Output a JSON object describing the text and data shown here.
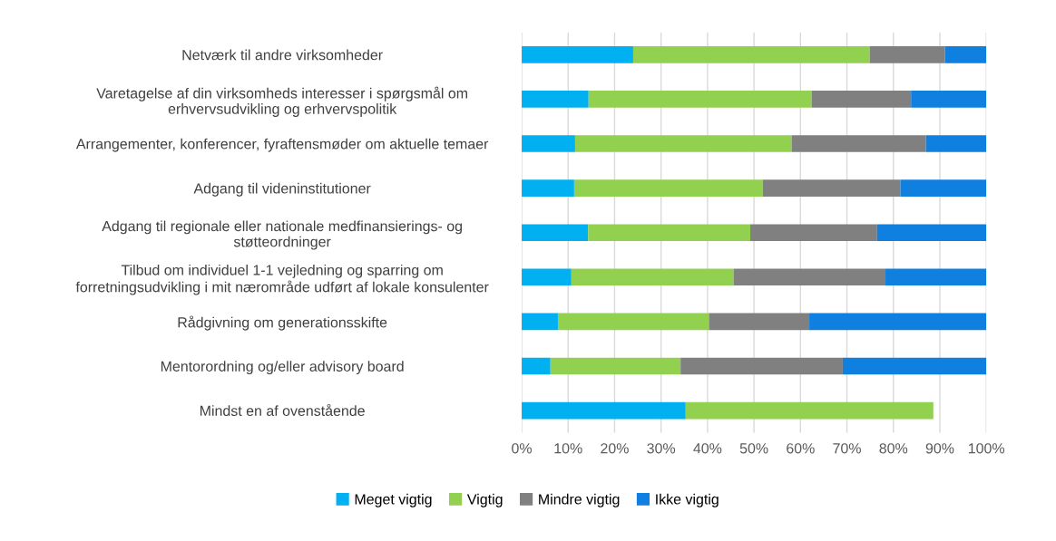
{
  "chart_data": {
    "type": "bar",
    "orientation": "horizontal",
    "stacked": true,
    "categories": [
      "Netværk til andre virksomheder",
      "Varetagelse af din virksomheds interesser i spørgsmål om\nerhvervsudvikling og erhvervspolitik",
      "Arrangementer, konferencer, fyraftensmøder om aktuelle temaer",
      "Adgang til videninstitutioner",
      "Adgang til regionale eller nationale medfinansierings- og\nstøtteordninger",
      "Tilbud om individuel 1-1 vejledning og sparring om\nforretningsudvikling i mit nærområde udført af lokale konsulenter",
      "Rådgivning om generationsskifte",
      "Mentorordning og/eller advisory board",
      "Mindst en af ovenstående"
    ],
    "series": [
      {
        "name": "Meget vigtig",
        "color": "#00b0f0",
        "values": [
          24.0,
          14.4,
          11.5,
          11.3,
          14.3,
          10.7,
          7.8,
          6.2,
          35.3
        ]
      },
      {
        "name": "Vigtig",
        "color": "#92d050",
        "values": [
          50.9,
          48.0,
          46.6,
          40.6,
          34.9,
          34.9,
          32.5,
          28.0,
          53.3
        ]
      },
      {
        "name": "Mindre vigtig",
        "color": "#808080",
        "values": [
          16.2,
          21.4,
          28.9,
          29.6,
          27.3,
          32.7,
          21.6,
          34.9,
          0
        ]
      },
      {
        "name": "Ikke vigtig",
        "color": "#0f7fe0",
        "values": [
          8.9,
          16.2,
          13.0,
          18.5,
          23.5,
          21.7,
          38.1,
          30.9,
          0
        ]
      }
    ],
    "xlim": [
      0,
      100
    ],
    "xticks": [
      {
        "value": 0,
        "label": "0%"
      },
      {
        "value": 10,
        "label": "10%"
      },
      {
        "value": 20,
        "label": "20%"
      },
      {
        "value": 30,
        "label": "30%"
      },
      {
        "value": 40,
        "label": "40%"
      },
      {
        "value": 50,
        "label": "50%"
      },
      {
        "value": 60,
        "label": "60%"
      },
      {
        "value": 70,
        "label": "70%"
      },
      {
        "value": 80,
        "label": "80%"
      },
      {
        "value": 90,
        "label": "90%"
      },
      {
        "value": 100,
        "label": "100%"
      }
    ],
    "grid": "x",
    "legend": "bottom"
  }
}
